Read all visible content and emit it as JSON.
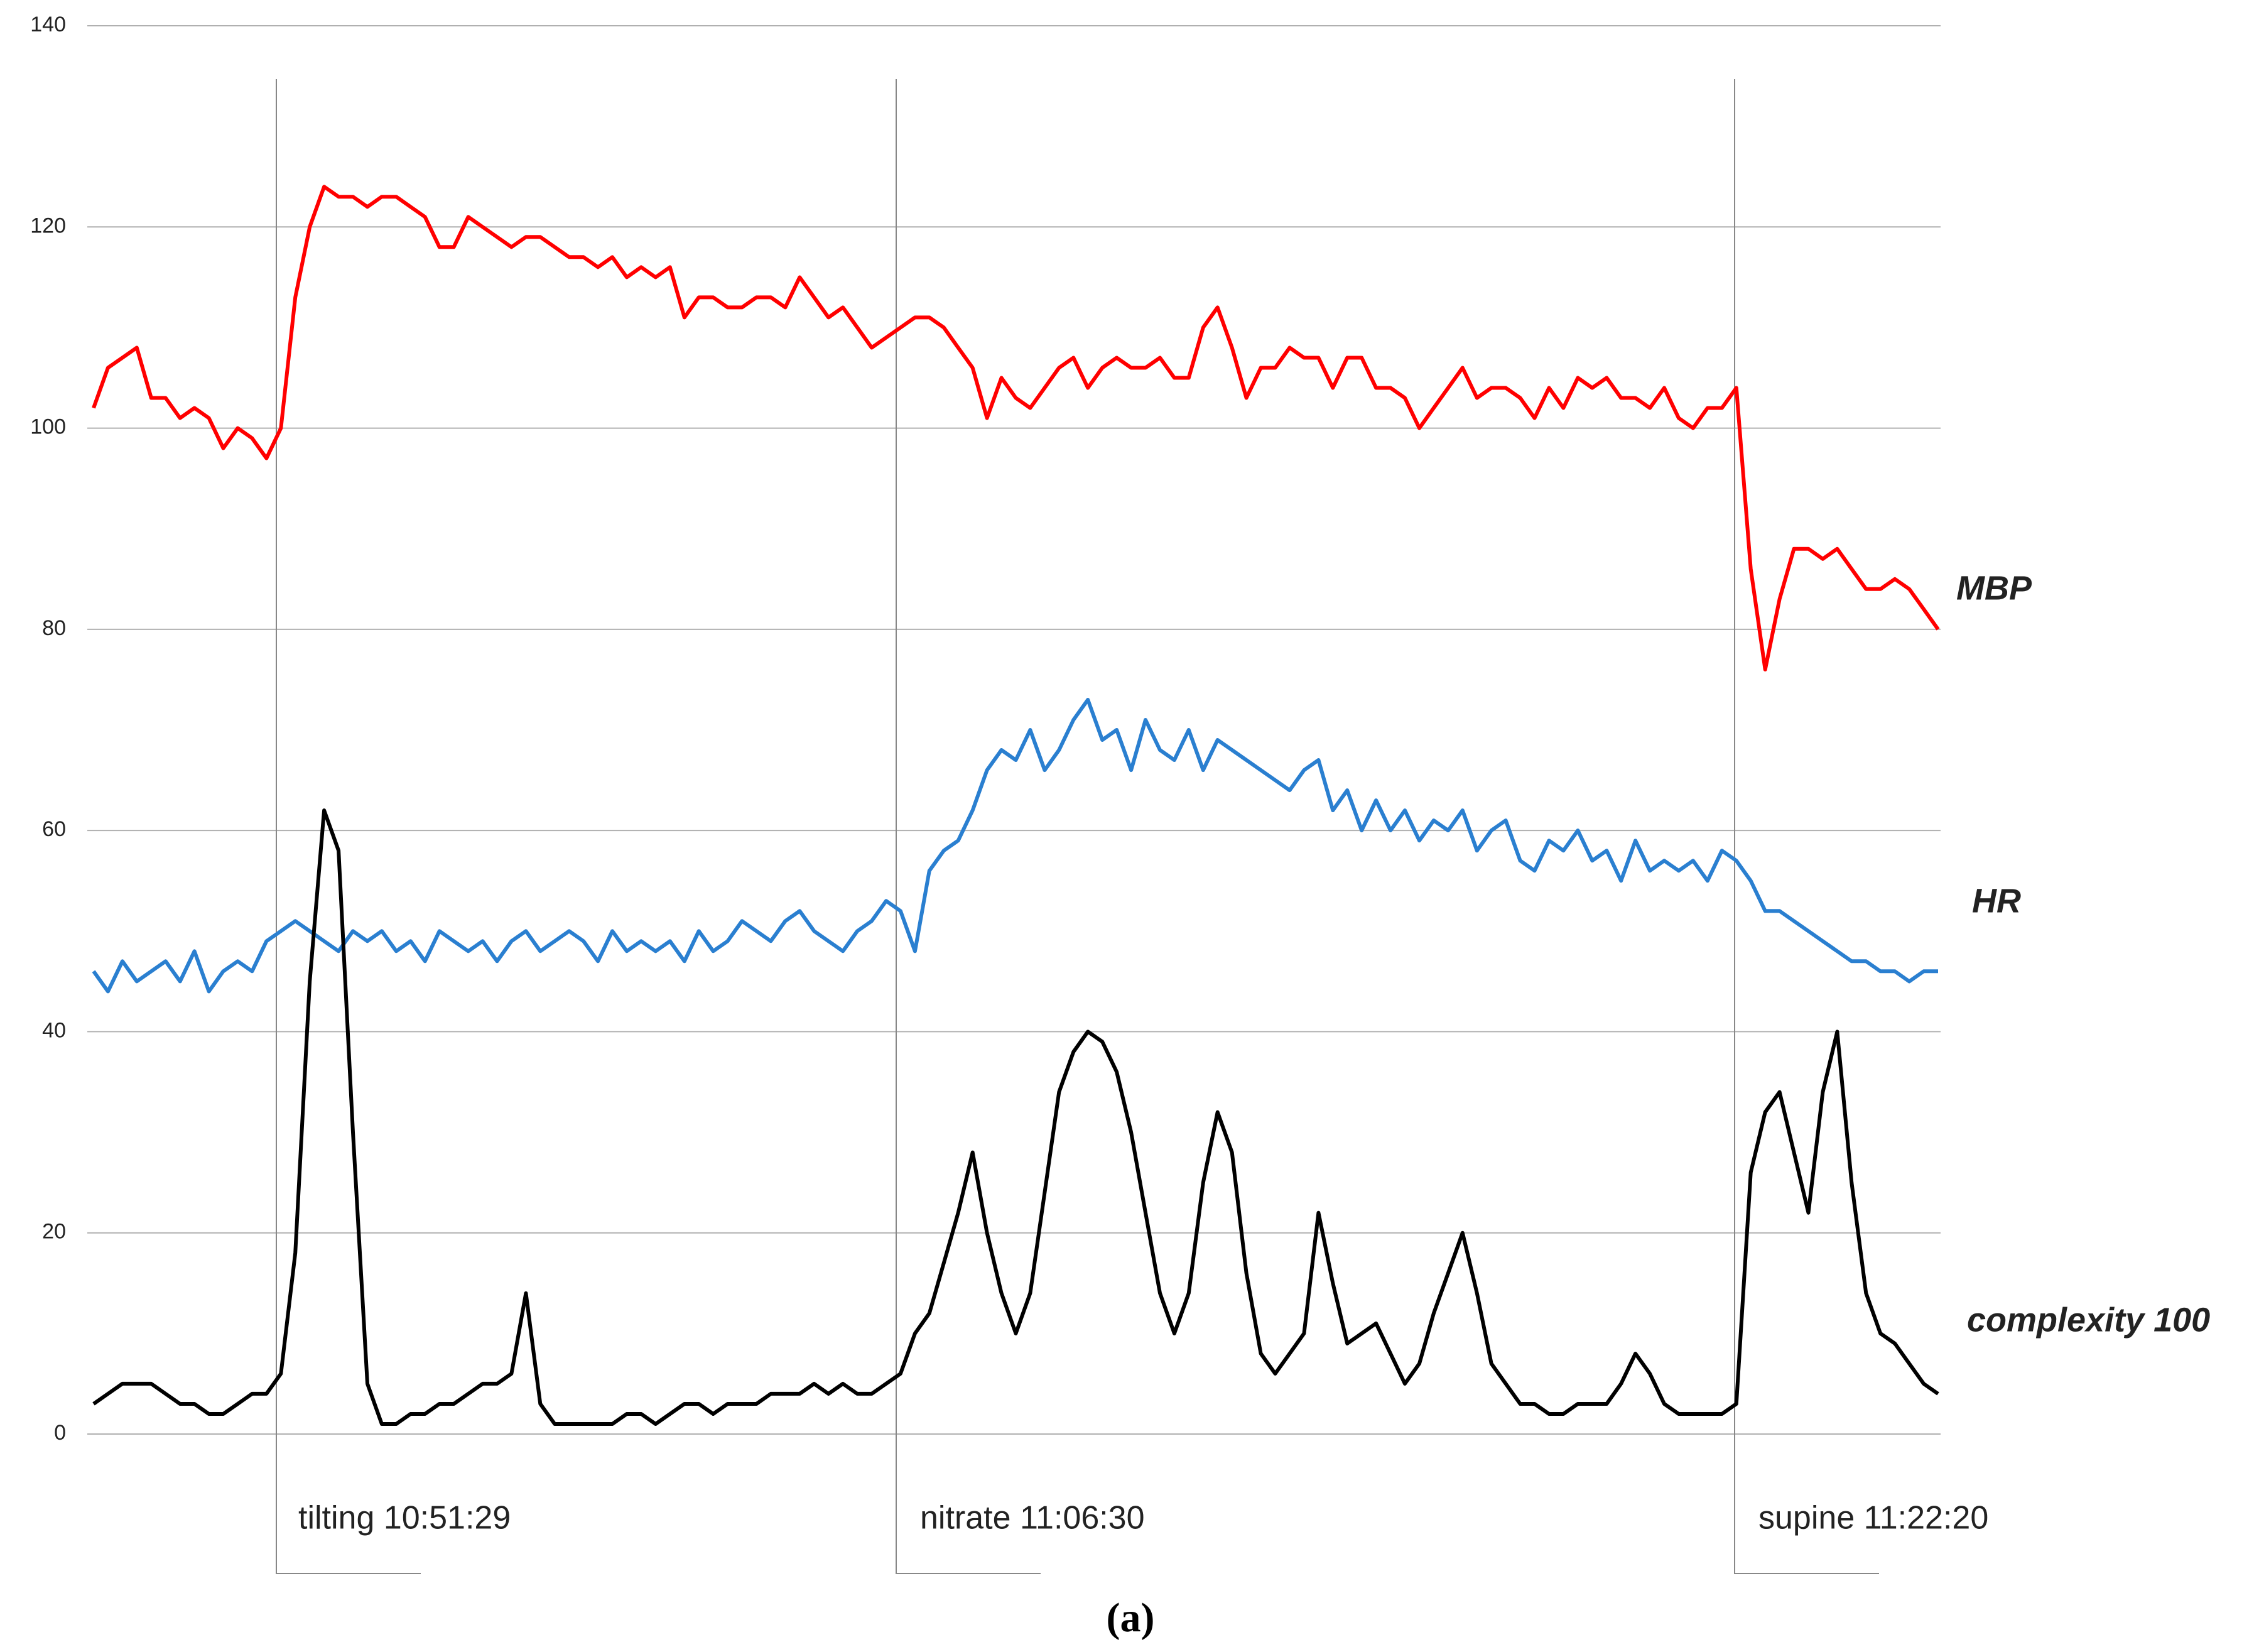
{
  "chart_data": {
    "type": "line",
    "caption": "(a)",
    "ylim": [
      0,
      140
    ],
    "yticks": [
      0,
      20,
      40,
      60,
      80,
      100,
      120,
      140
    ],
    "grid": true,
    "annotations": [
      "tilting 10:51:29",
      "nitrate 11:06:30",
      "supine 11:22:20"
    ],
    "series": [
      {
        "name": "MBP",
        "color": "#ff0000",
        "values": [
          102,
          106,
          107,
          108,
          103,
          103,
          101,
          102,
          101,
          98,
          100,
          99,
          97,
          100,
          113,
          120,
          124,
          123,
          123,
          122,
          123,
          123,
          122,
          121,
          118,
          118,
          121,
          120,
          119,
          118,
          119,
          119,
          118,
          117,
          117,
          116,
          117,
          115,
          116,
          115,
          116,
          111,
          113,
          113,
          112,
          112,
          113,
          113,
          112,
          115,
          113,
          111,
          112,
          110,
          108,
          109,
          110,
          111,
          111,
          110,
          108,
          106,
          101,
          105,
          103,
          102,
          104,
          106,
          107,
          104,
          106,
          107,
          106,
          106,
          107,
          105,
          105,
          110,
          112,
          108,
          103,
          106,
          106,
          108,
          107,
          107,
          104,
          107,
          107,
          104,
          104,
          103,
          100,
          102,
          104,
          106,
          103,
          104,
          104,
          103,
          101,
          104,
          102,
          105,
          104,
          105,
          103,
          103,
          102,
          104,
          101,
          100,
          102,
          102,
          104,
          86,
          76,
          83,
          88,
          88,
          87,
          88,
          86,
          84,
          84,
          85,
          84,
          82,
          80
        ]
      },
      {
        "name": "HR",
        "color": "#2a7fd0",
        "values": [
          46,
          44,
          47,
          45,
          46,
          47,
          45,
          48,
          44,
          46,
          47,
          46,
          49,
          50,
          51,
          50,
          49,
          48,
          50,
          49,
          50,
          48,
          49,
          47,
          50,
          49,
          48,
          49,
          47,
          49,
          50,
          48,
          49,
          50,
          49,
          47,
          50,
          48,
          49,
          48,
          49,
          47,
          50,
          48,
          49,
          51,
          50,
          49,
          51,
          52,
          50,
          49,
          48,
          50,
          51,
          53,
          52,
          48,
          56,
          58,
          59,
          62,
          66,
          68,
          67,
          70,
          66,
          68,
          71,
          73,
          69,
          70,
          66,
          71,
          68,
          67,
          70,
          66,
          69,
          68,
          67,
          66,
          65,
          64,
          66,
          67,
          62,
          64,
          60,
          63,
          60,
          62,
          59,
          61,
          60,
          62,
          58,
          60,
          61,
          57,
          56,
          59,
          58,
          60,
          57,
          58,
          55,
          59,
          56,
          57,
          56,
          57,
          55,
          58,
          57,
          55,
          52,
          52,
          51,
          50,
          49,
          48,
          47,
          47,
          46,
          46,
          45,
          46,
          46
        ]
      },
      {
        "name": "complexity 100",
        "color": "#000000",
        "values": [
          3,
          4,
          5,
          5,
          5,
          4,
          3,
          3,
          2,
          2,
          3,
          4,
          4,
          6,
          18,
          45,
          62,
          58,
          30,
          5,
          1,
          1,
          2,
          2,
          3,
          3,
          4,
          5,
          5,
          6,
          14,
          3,
          1,
          1,
          1,
          1,
          1,
          2,
          2,
          1,
          2,
          3,
          3,
          2,
          3,
          3,
          3,
          4,
          4,
          4,
          5,
          4,
          5,
          4,
          4,
          5,
          6,
          10,
          12,
          17,
          22,
          28,
          20,
          14,
          10,
          14,
          24,
          34,
          38,
          40,
          39,
          36,
          30,
          22,
          14,
          10,
          14,
          25,
          32,
          28,
          16,
          8,
          6,
          8,
          10,
          22,
          15,
          9,
          10,
          11,
          8,
          5,
          7,
          12,
          16,
          20,
          14,
          7,
          5,
          3,
          3,
          2,
          2,
          3,
          3,
          3,
          5,
          8,
          6,
          3,
          2,
          2,
          2,
          2,
          3,
          26,
          32,
          34,
          28,
          22,
          34,
          40,
          25,
          14,
          10,
          9,
          7,
          5,
          4
        ]
      }
    ]
  }
}
